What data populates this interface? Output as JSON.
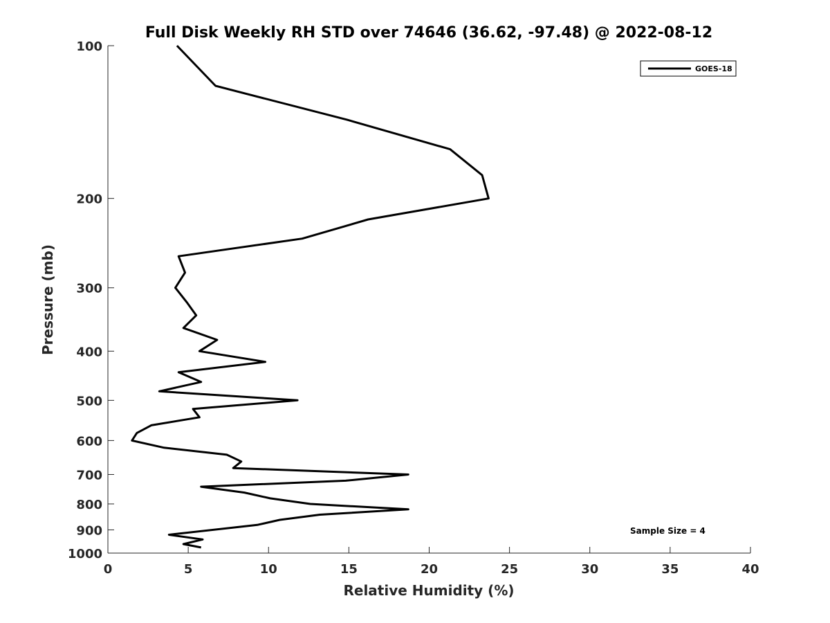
{
  "chart_data": {
    "type": "line",
    "title": "Full Disk Weekly RH STD over 74646 (36.62, -97.48) @ 2022-08-12",
    "xlabel": "Relative Humidity (%)",
    "ylabel": "Pressure (mb)",
    "xlim": [
      0,
      40
    ],
    "ylim": [
      100,
      1000
    ],
    "yscale": "log",
    "yreversed": true,
    "xticks": [
      0,
      5,
      10,
      15,
      20,
      25,
      30,
      35,
      40
    ],
    "yticks": [
      100,
      200,
      300,
      400,
      500,
      600,
      700,
      800,
      900,
      1000
    ],
    "grid": false,
    "legend": {
      "position": "top-right",
      "entries": [
        "GOES-18"
      ]
    },
    "annotation": "Sample Size = 4",
    "series": [
      {
        "name": "GOES-18",
        "color": "#000000",
        "points": [
          [
            4.3,
            100
          ],
          [
            6.7,
            120
          ],
          [
            14.9,
            140
          ],
          [
            21.3,
            160
          ],
          [
            23.3,
            180
          ],
          [
            23.7,
            200
          ],
          [
            16.2,
            220
          ],
          [
            12.1,
            240
          ],
          [
            4.4,
            260
          ],
          [
            4.8,
            280
          ],
          [
            4.2,
            300
          ],
          [
            4.9,
            320
          ],
          [
            5.5,
            340
          ],
          [
            4.7,
            360
          ],
          [
            6.8,
            380
          ],
          [
            5.7,
            400
          ],
          [
            9.8,
            420
          ],
          [
            4.4,
            440
          ],
          [
            5.8,
            460
          ],
          [
            3.2,
            480
          ],
          [
            11.8,
            500
          ],
          [
            5.3,
            520
          ],
          [
            5.7,
            540
          ],
          [
            2.7,
            560
          ],
          [
            1.8,
            580
          ],
          [
            1.5,
            600
          ],
          [
            3.5,
            620
          ],
          [
            7.4,
            640
          ],
          [
            8.3,
            660
          ],
          [
            7.8,
            680
          ],
          [
            18.7,
            700
          ],
          [
            14.8,
            720
          ],
          [
            5.8,
            740
          ],
          [
            8.5,
            760
          ],
          [
            10.1,
            780
          ],
          [
            12.6,
            800
          ],
          [
            18.7,
            820
          ],
          [
            13.2,
            840
          ],
          [
            10.7,
            860
          ],
          [
            9.3,
            880
          ],
          [
            3.8,
            920
          ],
          [
            5.9,
            940
          ],
          [
            4.7,
            960
          ],
          [
            5.8,
            975
          ]
        ]
      }
    ]
  }
}
